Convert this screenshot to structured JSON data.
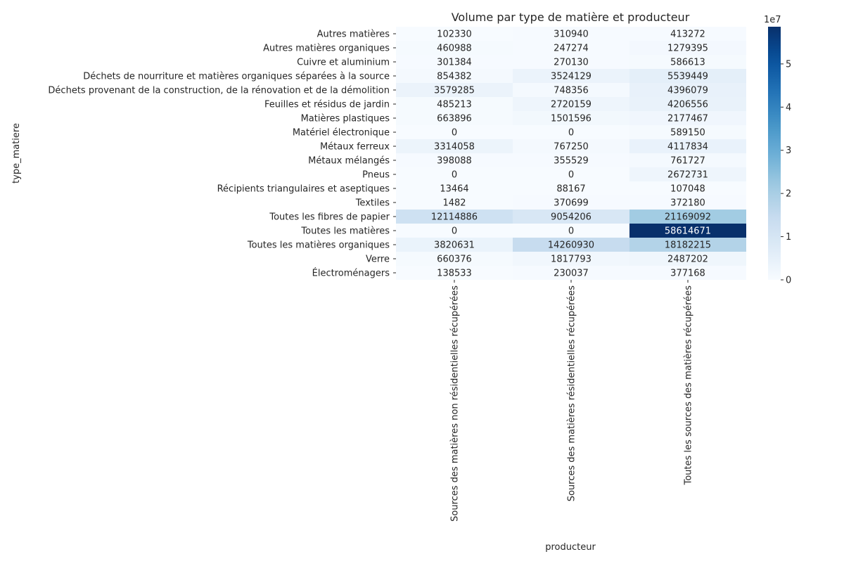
{
  "chart_data": {
    "type": "heatmap",
    "title": "Volume par type de matière et producteur",
    "xlabel": "producteur",
    "ylabel": "type_matiere",
    "colormap": "Blues",
    "vmin": 0,
    "vmax": 58614671,
    "colorbar": {
      "ticks": [
        0,
        1,
        2,
        3,
        4,
        5
      ],
      "tick_labels": [
        "0",
        "1",
        "2",
        "3",
        "4",
        "5"
      ],
      "multiplier_label": "1e7",
      "tick_scale": 10000000
    },
    "x_categories": [
      "Sources des matières non résidentielles récupérées",
      "Sources des matières résidentielles récupérées",
      "Toutes les sources des matières récupérées"
    ],
    "y_categories": [
      "Autres matières",
      "Autres matières organiques",
      "Cuivre et aluminium",
      "Déchets de nourriture et matières organiques séparées à la source",
      "Déchets provenant de la construction, de la rénovation et de la démolition",
      "Feuilles et résidus de jardin",
      "Matières plastiques",
      "Matériel électronique",
      "Métaux ferreux",
      "Métaux mélangés",
      "Pneus",
      "Récipients triangulaires et aseptiques",
      "Textiles",
      "Toutes les fibres de papier",
      "Toutes les matières",
      "Toutes les matières organiques",
      "Verre",
      "Électroménagers"
    ],
    "values": [
      [
        102330,
        310940,
        413272
      ],
      [
        460988,
        247274,
        1279395
      ],
      [
        301384,
        270130,
        586613
      ],
      [
        854382,
        3524129,
        5539449
      ],
      [
        3579285,
        748356,
        4396079
      ],
      [
        485213,
        2720159,
        4206556
      ],
      [
        663896,
        1501596,
        2177467
      ],
      [
        0,
        0,
        589150
      ],
      [
        3314058,
        767250,
        4117834
      ],
      [
        398088,
        355529,
        761727
      ],
      [
        0,
        0,
        2672731
      ],
      [
        13464,
        88167,
        107048
      ],
      [
        1482,
        370699,
        372180
      ],
      [
        12114886,
        9054206,
        21169092
      ],
      [
        0,
        0,
        58614671
      ],
      [
        3820631,
        14260930,
        18182215
      ],
      [
        660376,
        1817793,
        2487202
      ],
      [
        138533,
        230037,
        377168
      ]
    ]
  }
}
